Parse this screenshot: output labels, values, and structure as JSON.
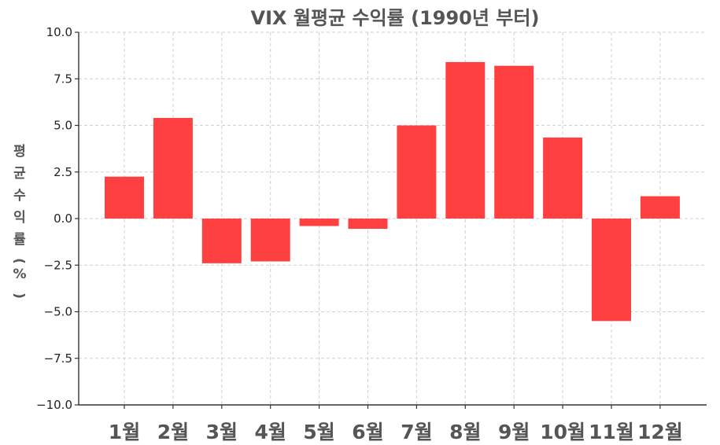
{
  "chart_data": {
    "type": "bar",
    "title": "VIX 월평균 수익률 (1990년 부터)",
    "ylabel": "평균 수익률 (%)",
    "xlabel": "",
    "categories": [
      "1월",
      "2월",
      "3월",
      "4월",
      "5월",
      "6월",
      "7월",
      "8월",
      "9월",
      "10월",
      "11월",
      "12월"
    ],
    "values": [
      2.25,
      5.4,
      -2.4,
      -2.3,
      -0.4,
      -0.55,
      5.0,
      8.4,
      8.2,
      4.35,
      -5.5,
      1.2
    ],
    "ylim": [
      -10.0,
      10.0
    ],
    "yticks": [
      "10.0",
      "7.5",
      "5.0",
      "2.5",
      "0.0",
      "-2.5",
      "-5.0",
      "-7.5",
      "-10.0"
    ],
    "grid": true,
    "bar_color": "#ff4040"
  }
}
